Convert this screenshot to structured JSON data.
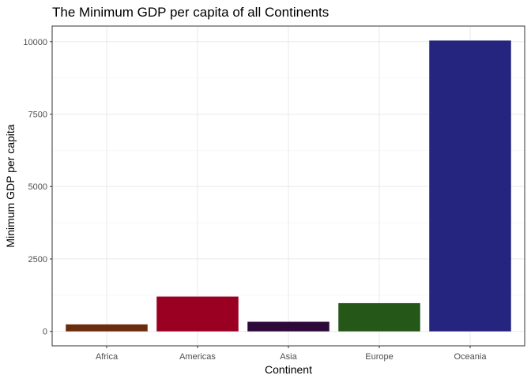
{
  "chart_data": {
    "type": "bar",
    "title": "The Minimum GDP per capita of all Continents",
    "xlabel": "Continent",
    "ylabel": "Minimum GDP per capita",
    "categories": [
      "Africa",
      "Americas",
      "Asia",
      "Europe",
      "Oceania"
    ],
    "values": [
      241.2,
      1201.6,
      331.0,
      973.5,
      10039.6
    ],
    "colors": [
      "#6B2C0E",
      "#990022",
      "#2E0A3A",
      "#245718",
      "#25247F"
    ],
    "ylim": [
      -500,
      10540
    ],
    "yticks": [
      0,
      2500,
      5000,
      7500,
      10000
    ],
    "ytick_labels": [
      "0",
      "2500",
      "5000",
      "7500",
      "10000"
    ],
    "grid": true,
    "legend": "none"
  }
}
